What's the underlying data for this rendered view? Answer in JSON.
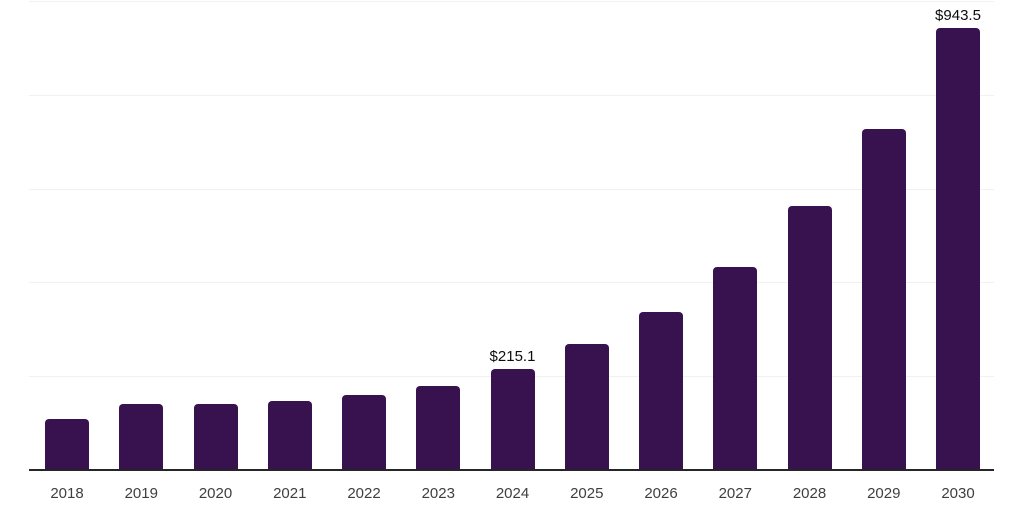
{
  "chart_data": {
    "type": "bar",
    "title": "",
    "xlabel": "",
    "ylabel": "",
    "categories": [
      "2018",
      "2019",
      "2020",
      "2021",
      "2022",
      "2023",
      "2024",
      "2025",
      "2026",
      "2027",
      "2028",
      "2029",
      "2030"
    ],
    "values": [
      108,
      140,
      141,
      148,
      160,
      179,
      215.1,
      269,
      337,
      433,
      562,
      728,
      943.5
    ],
    "bar_labels": [
      "",
      "",
      "",
      "",
      "",
      "",
      "$215.1",
      "",
      "",
      "",
      "",
      "",
      "$943.5"
    ],
    "value_prefix": "$",
    "ylim": [
      0,
      1000
    ],
    "gridline_values": [
      200,
      400,
      600,
      800,
      1000
    ],
    "grid": "horizontal",
    "legend": "none"
  },
  "colors": {
    "bar": "#37124E",
    "gridline": "#f1f1f1",
    "axis_line": "#262626",
    "tick_label": "#3f3f3f",
    "data_label": "#0d0d0d",
    "background": "#ffffff"
  }
}
